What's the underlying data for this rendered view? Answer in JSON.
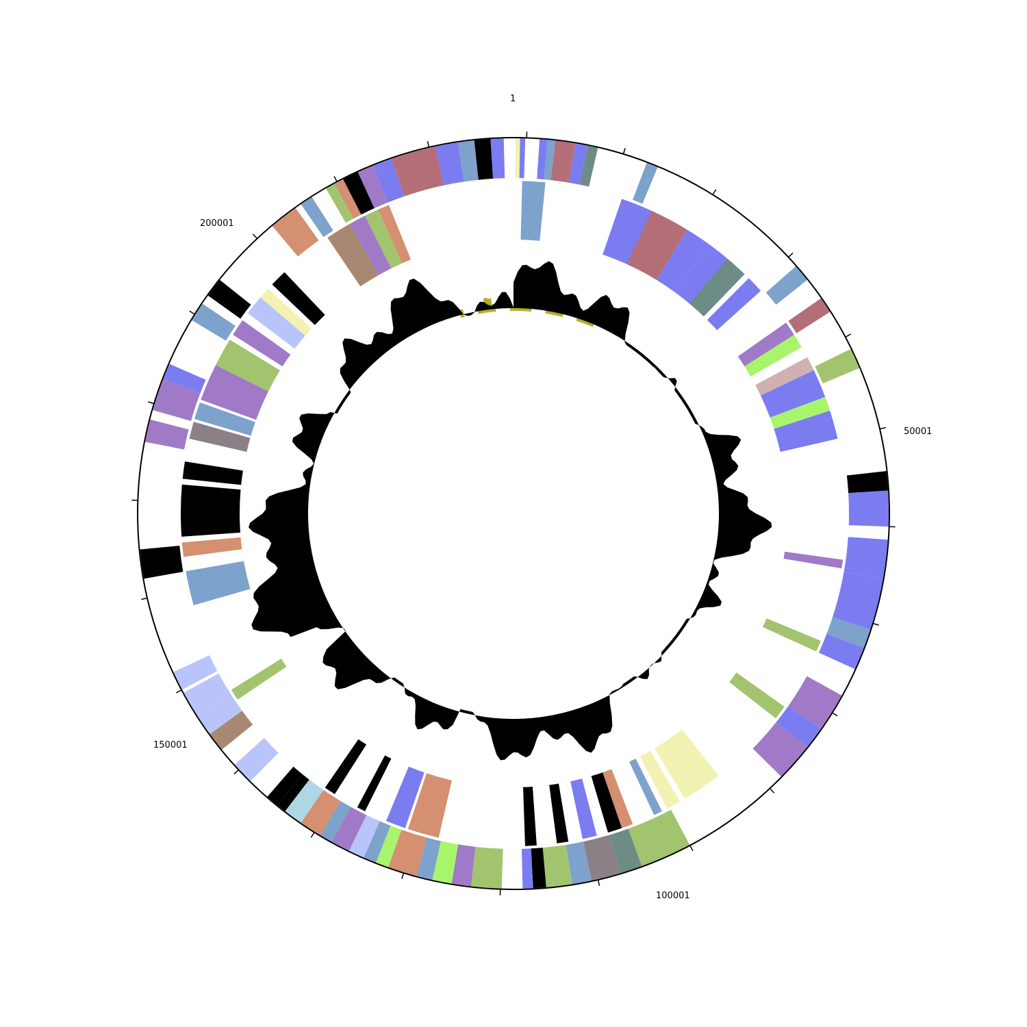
{
  "genome_map": {
    "position_labels": [
      "1",
      "50001",
      "100001",
      "150001",
      "200001"
    ],
    "colors": {
      "backbone": "#000000",
      "gc_content": "#000000",
      "gc_skew_positive": "#b5ad2c",
      "gc_skew_negative": "#9d34b4",
      "cog_blue": "#7b7cf0",
      "cog_steel": "#7da2cc",
      "cog_rose": "#b46e78",
      "cog_slate": "#6e8c86",
      "cog_green": "#a2c46e",
      "cog_lime": "#a8f56c",
      "cog_purple": "#a07ac6",
      "cog_orange": "#d49070",
      "cog_tan": "#a88872",
      "cog_cream": "#f2f2b2",
      "cog_pale_blue": "#b8c4fa",
      "cog_light_teal": "#aed6e6",
      "cog_grey": "#8c8087",
      "cog_pink": "#d0b0b0"
    }
  }
}
